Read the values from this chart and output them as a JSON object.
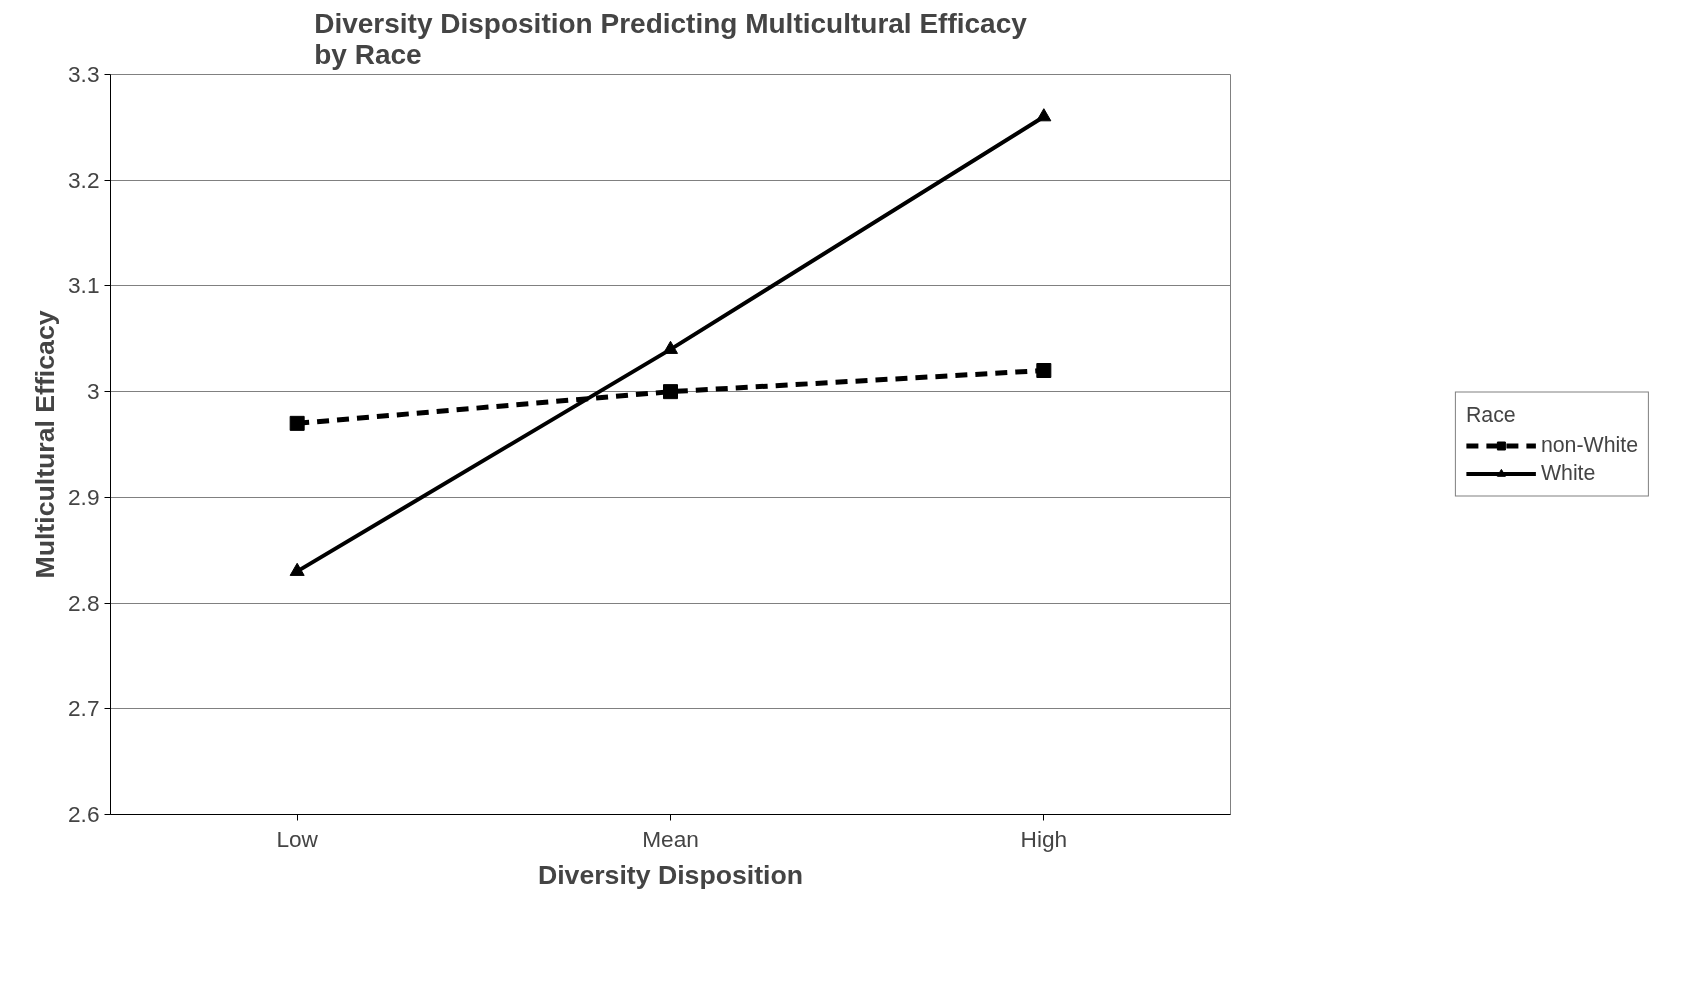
{
  "chart_data": {
    "type": "line",
    "title": "Diversity Disposition Predicting Multicultural Efficacy\nby Race",
    "xlabel": "Diversity Disposition",
    "ylabel": "Multicultural Efficacy",
    "legend_title": "Race",
    "categories": [
      "Low",
      "Mean",
      "High"
    ],
    "series": [
      {
        "name": "non-White",
        "color": "#000000",
        "values": [
          2.97,
          3.0,
          3.02
        ],
        "marker": "square",
        "line_style": "dashed"
      },
      {
        "name": "White",
        "color": "#000000",
        "values": [
          2.83,
          3.04,
          3.26
        ],
        "marker": "triangle",
        "line_style": "solid"
      }
    ],
    "ylim": [
      2.6,
      3.3
    ],
    "yticks": [
      2.6,
      2.7,
      2.8,
      2.9,
      3,
      3.1,
      3.2,
      3.3
    ],
    "grid": "y",
    "legend": "right"
  }
}
